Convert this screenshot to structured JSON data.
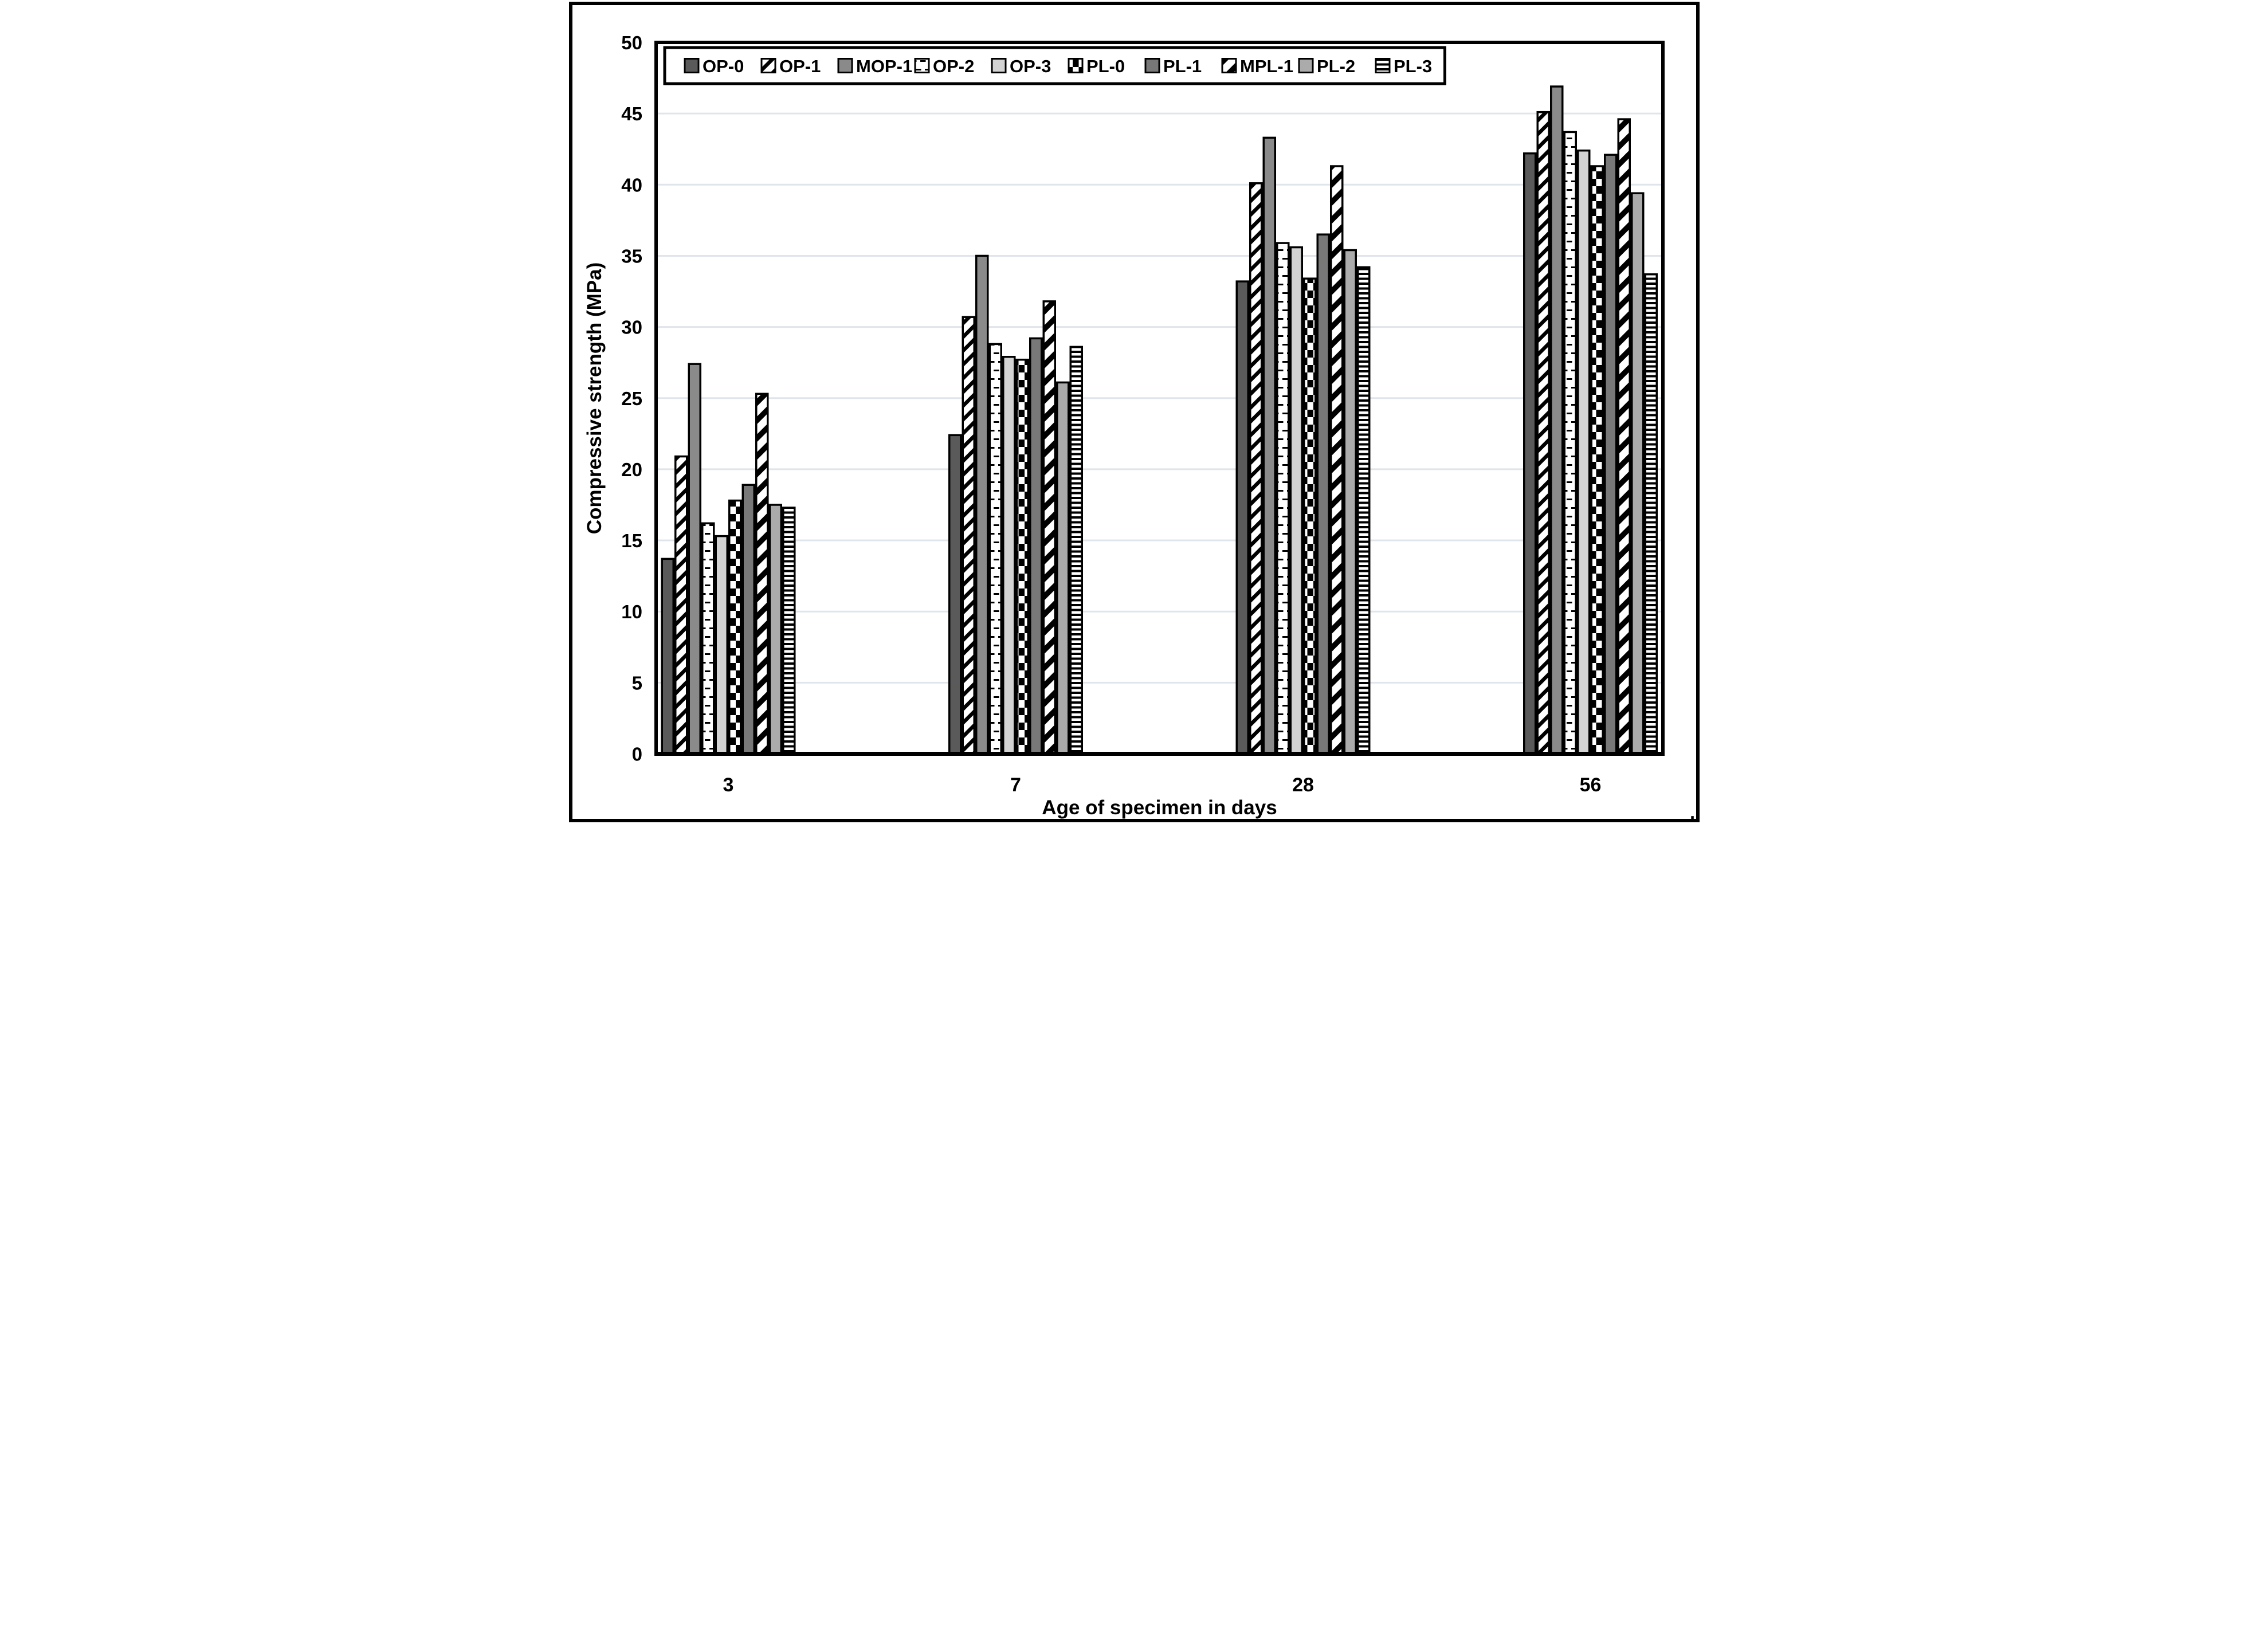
{
  "figure": {
    "corner_text": ".",
    "background_color": "#ffffff",
    "border_color": "#000000",
    "gridline_color": "#e0e5eb",
    "bar_border_color": "#000000"
  },
  "chart_data": {
    "type": "bar",
    "title": "",
    "xlabel": "Age of specimen in days",
    "ylabel": "Compressive strength (MPa)",
    "categories": [
      "3",
      "7",
      "28",
      "56"
    ],
    "ylim": [
      0,
      50
    ],
    "y_ticks": [
      0,
      5,
      10,
      15,
      20,
      25,
      30,
      35,
      40,
      45,
      50
    ],
    "grid": "horizontal gridlines every 5 MPa",
    "legend_position": "top inside, horizontal row",
    "series": [
      {
        "name": "OP-0",
        "pattern": "solid",
        "color": "#5a5a5a",
        "values": [
          13.7,
          22.4,
          33.2,
          42.2
        ]
      },
      {
        "name": "OP-1",
        "pattern": "diag-thin",
        "color": "#000000",
        "values": [
          20.9,
          30.7,
          40.1,
          45.1
        ]
      },
      {
        "name": "MOP-1",
        "pattern": "solid",
        "color": "#8a8a8a",
        "values": [
          27.4,
          35.0,
          43.3,
          46.9
        ]
      },
      {
        "name": "OP-2",
        "pattern": "dash-horizontal",
        "color": "#000000",
        "values": [
          16.2,
          28.8,
          35.9,
          43.7
        ]
      },
      {
        "name": "OP-3",
        "pattern": "solid",
        "color": "#d3d3d3",
        "values": [
          15.3,
          27.9,
          35.6,
          42.4
        ]
      },
      {
        "name": "PL-0",
        "pattern": "checker",
        "color": "#000000",
        "values": [
          17.8,
          27.7,
          33.4,
          41.3
        ]
      },
      {
        "name": "PL-1",
        "pattern": "solid",
        "color": "#787878",
        "values": [
          18.9,
          29.2,
          36.5,
          42.1
        ]
      },
      {
        "name": "MPL-1",
        "pattern": "diag-bold",
        "color": "#000000",
        "values": [
          25.3,
          31.8,
          41.3,
          44.6
        ]
      },
      {
        "name": "PL-2",
        "pattern": "solid",
        "color": "#ababab",
        "values": [
          17.5,
          26.1,
          35.4,
          39.4
        ]
      },
      {
        "name": "PL-3",
        "pattern": "lines-horizontal",
        "color": "#000000",
        "values": [
          17.3,
          28.6,
          34.2,
          33.7
        ]
      }
    ]
  }
}
